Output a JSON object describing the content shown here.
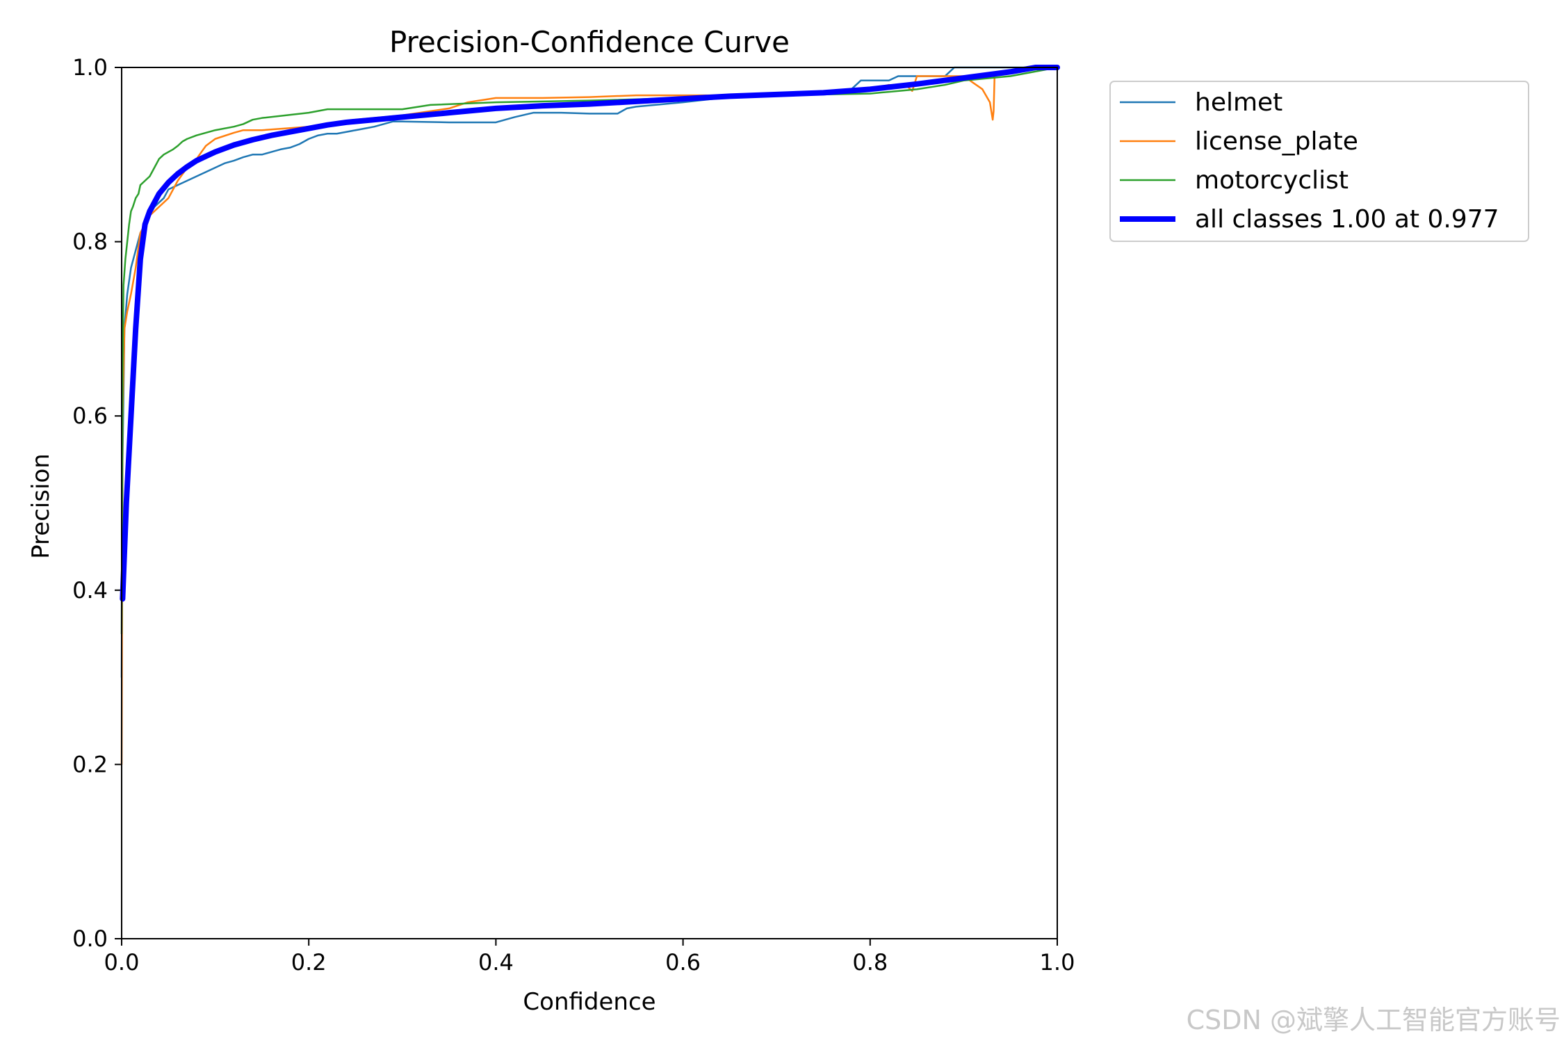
{
  "chart_data": {
    "type": "line",
    "title": "Precision-Confidence Curve",
    "xlabel": "Confidence",
    "ylabel": "Precision",
    "xlim": [
      0,
      1
    ],
    "ylim": [
      0,
      1
    ],
    "xticks": [
      "0.0",
      "0.2",
      "0.4",
      "0.6",
      "0.8",
      "1.0"
    ],
    "yticks": [
      "0.0",
      "0.2",
      "0.4",
      "0.6",
      "0.8",
      "1.0"
    ],
    "legend_position": "outside-top-right",
    "grid": false,
    "series": [
      {
        "name": "helmet",
        "color": "#1f77b4",
        "width": "thin",
        "x": [
          0,
          0.001,
          0.003,
          0.006,
          0.01,
          0.015,
          0.02,
          0.025,
          0.03,
          0.035,
          0.04,
          0.045,
          0.05,
          0.06,
          0.07,
          0.08,
          0.09,
          0.1,
          0.11,
          0.12,
          0.13,
          0.14,
          0.15,
          0.16,
          0.17,
          0.18,
          0.19,
          0.2,
          0.21,
          0.22,
          0.23,
          0.24,
          0.25,
          0.26,
          0.27,
          0.28,
          0.29,
          0.3,
          0.35,
          0.4,
          0.41,
          0.42,
          0.44,
          0.45,
          0.47,
          0.5,
          0.53,
          0.54,
          0.55,
          0.6,
          0.65,
          0.7,
          0.75,
          0.78,
          0.79,
          0.8,
          0.82,
          0.83,
          0.86,
          0.88,
          0.89,
          0.9,
          0.95,
          1.0
        ],
        "y": [
          0.3,
          0.55,
          0.7,
          0.74,
          0.77,
          0.79,
          0.81,
          0.82,
          0.83,
          0.84,
          0.845,
          0.85,
          0.86,
          0.865,
          0.87,
          0.875,
          0.88,
          0.885,
          0.89,
          0.893,
          0.897,
          0.9,
          0.9,
          0.903,
          0.906,
          0.908,
          0.912,
          0.918,
          0.922,
          0.924,
          0.924,
          0.926,
          0.928,
          0.93,
          0.932,
          0.935,
          0.938,
          0.938,
          0.937,
          0.937,
          0.94,
          0.943,
          0.948,
          0.948,
          0.948,
          0.947,
          0.947,
          0.953,
          0.955,
          0.96,
          0.966,
          0.97,
          0.972,
          0.975,
          0.985,
          0.985,
          0.985,
          0.99,
          0.99,
          0.99,
          1.0,
          1.0,
          1.0,
          1.0
        ]
      },
      {
        "name": "license_plate",
        "color": "#ff7f0e",
        "width": "thin",
        "x": [
          0,
          0.001,
          0.003,
          0.006,
          0.01,
          0.015,
          0.02,
          0.025,
          0.03,
          0.035,
          0.04,
          0.05,
          0.06,
          0.07,
          0.08,
          0.09,
          0.1,
          0.12,
          0.13,
          0.15,
          0.2,
          0.25,
          0.3,
          0.35,
          0.37,
          0.4,
          0.45,
          0.5,
          0.55,
          0.6,
          0.65,
          0.7,
          0.75,
          0.8,
          0.82,
          0.84,
          0.845,
          0.85,
          0.9,
          0.92,
          0.928,
          0.931,
          0.932,
          0.933,
          0.94,
          1.0
        ],
        "y": [
          0.2,
          0.6,
          0.7,
          0.72,
          0.74,
          0.77,
          0.81,
          0.82,
          0.83,
          0.835,
          0.84,
          0.85,
          0.87,
          0.885,
          0.895,
          0.91,
          0.918,
          0.925,
          0.928,
          0.928,
          0.932,
          0.94,
          0.945,
          0.953,
          0.96,
          0.965,
          0.965,
          0.966,
          0.968,
          0.968,
          0.968,
          0.968,
          0.97,
          0.975,
          0.98,
          0.978,
          0.973,
          0.99,
          0.99,
          0.975,
          0.96,
          0.94,
          0.95,
          0.99,
          0.995,
          1.0
        ]
      },
      {
        "name": "motorcyclist",
        "color": "#2ca02c",
        "width": "thin",
        "x": [
          0,
          0.001,
          0.002,
          0.004,
          0.006,
          0.008,
          0.01,
          0.012,
          0.015,
          0.018,
          0.02,
          0.025,
          0.03,
          0.035,
          0.04,
          0.045,
          0.05,
          0.055,
          0.06,
          0.065,
          0.07,
          0.08,
          0.1,
          0.12,
          0.13,
          0.14,
          0.15,
          0.2,
          0.22,
          0.25,
          0.3,
          0.33,
          0.4,
          0.5,
          0.6,
          0.7,
          0.8,
          0.82,
          0.85,
          0.88,
          0.9,
          0.95,
          1.0
        ],
        "y": [
          0.35,
          0.65,
          0.75,
          0.78,
          0.8,
          0.82,
          0.835,
          0.84,
          0.85,
          0.855,
          0.865,
          0.87,
          0.875,
          0.885,
          0.895,
          0.9,
          0.903,
          0.906,
          0.91,
          0.915,
          0.918,
          0.922,
          0.928,
          0.932,
          0.935,
          0.94,
          0.942,
          0.948,
          0.952,
          0.952,
          0.952,
          0.957,
          0.96,
          0.962,
          0.965,
          0.968,
          0.97,
          0.972,
          0.975,
          0.98,
          0.985,
          0.99,
          1.0
        ]
      },
      {
        "name": "all classes 1.00 at 0.977",
        "color": "#0000ff",
        "width": "thick",
        "x": [
          0.001,
          0.005,
          0.01,
          0.015,
          0.02,
          0.025,
          0.03,
          0.035,
          0.04,
          0.05,
          0.06,
          0.07,
          0.08,
          0.09,
          0.1,
          0.12,
          0.14,
          0.16,
          0.18,
          0.2,
          0.22,
          0.24,
          0.26,
          0.28,
          0.3,
          0.35,
          0.4,
          0.45,
          0.5,
          0.55,
          0.6,
          0.65,
          0.7,
          0.75,
          0.8,
          0.85,
          0.9,
          0.95,
          0.977,
          1.0
        ],
        "y": [
          0.39,
          0.5,
          0.6,
          0.7,
          0.78,
          0.82,
          0.835,
          0.845,
          0.855,
          0.868,
          0.878,
          0.886,
          0.893,
          0.898,
          0.903,
          0.911,
          0.917,
          0.922,
          0.926,
          0.93,
          0.934,
          0.937,
          0.939,
          0.941,
          0.943,
          0.948,
          0.953,
          0.956,
          0.958,
          0.961,
          0.964,
          0.967,
          0.969,
          0.971,
          0.975,
          0.981,
          0.988,
          0.995,
          1.0,
          1.0
        ]
      }
    ]
  },
  "watermark": "CSDN @斌擎人工智能官方账号"
}
